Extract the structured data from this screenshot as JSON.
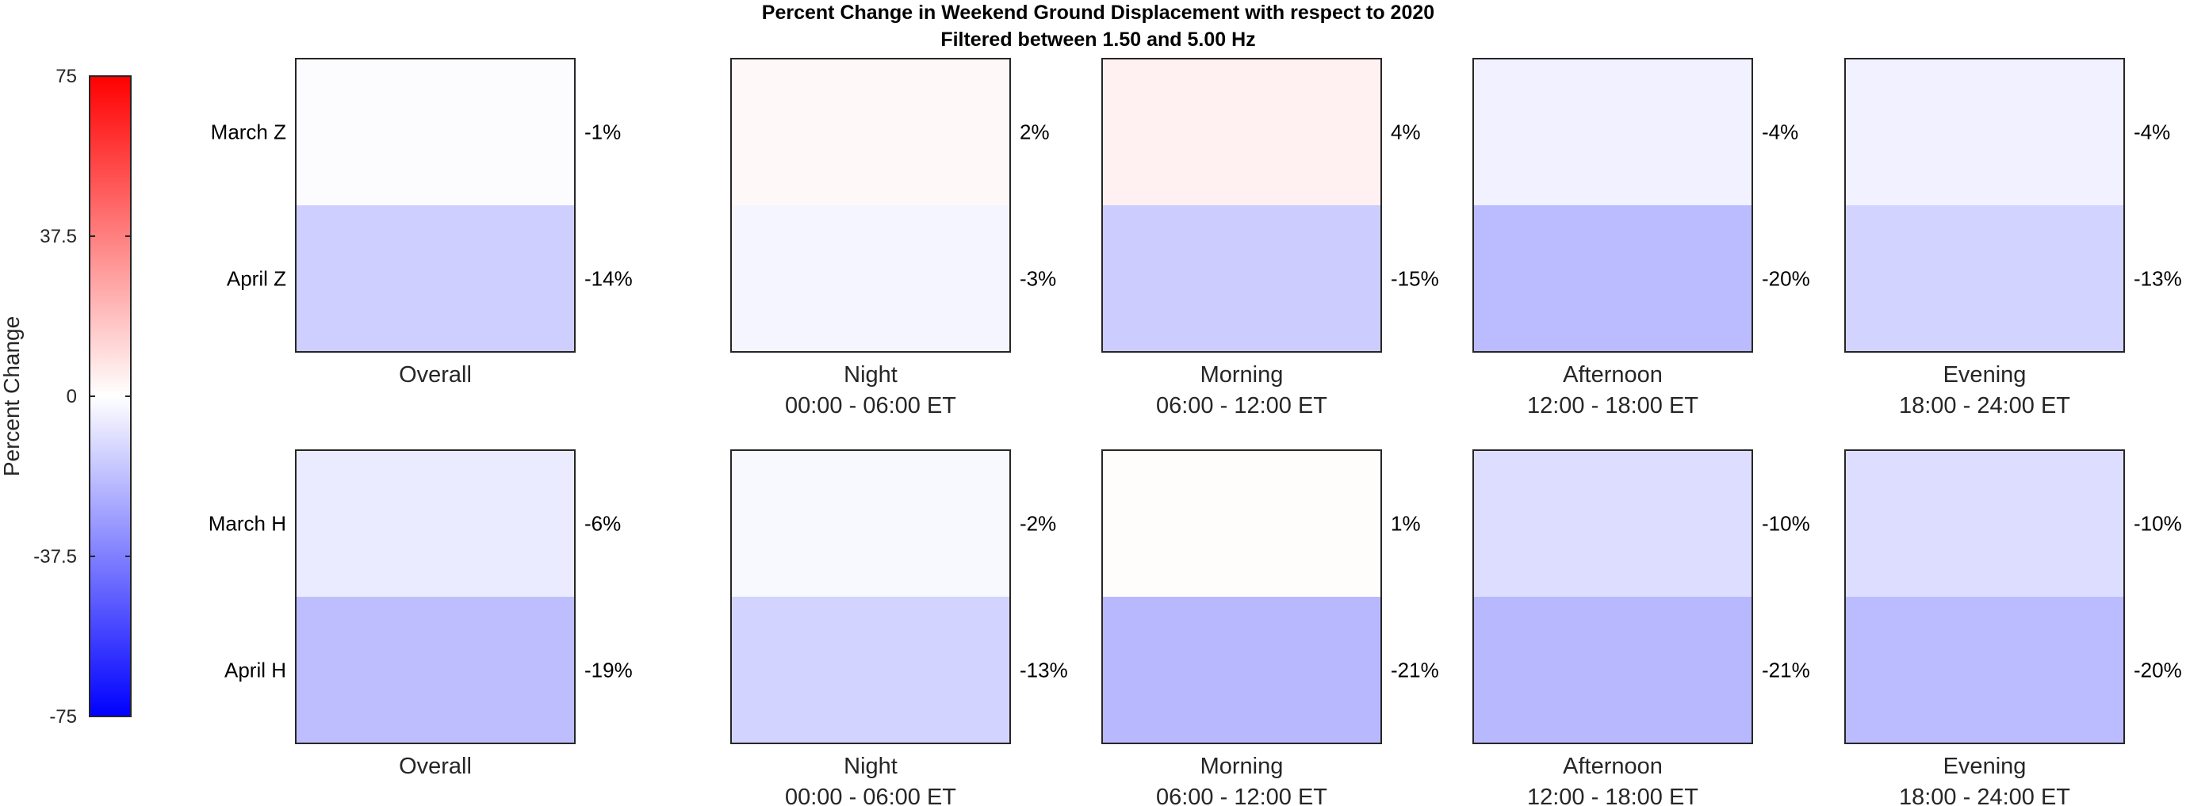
{
  "chart_data": {
    "type": "heatmap",
    "title": "Percent Change in Weekend Ground Displacement with respect to 2020",
    "subtitle": "Filtered between 1.50 and 5.00 Hz",
    "colorbar": {
      "label": "Percent Change",
      "range": [
        -75,
        75
      ],
      "ticks": [
        "75",
        "37.5",
        "0",
        "-37.5",
        "-75"
      ],
      "tick_values": [
        75,
        37.5,
        0,
        -37.5,
        -75
      ],
      "colormap": "blue-white-red",
      "low_color": "#0000ff",
      "mid_color": "#ffffff",
      "high_color": "#ff0000"
    },
    "columns": [
      {
        "name": "Overall",
        "sub": ""
      },
      {
        "name": "Night",
        "sub": "00:00 - 06:00 ET"
      },
      {
        "name": "Morning",
        "sub": "06:00 - 12:00 ET"
      },
      {
        "name": "Afternoon",
        "sub": "12:00 - 18:00 ET"
      },
      {
        "name": "Evening",
        "sub": "18:00 - 24:00 ET"
      }
    ],
    "panel_rows": [
      {
        "row_labels": [
          "March Z",
          "April Z"
        ],
        "values": [
          [
            -1,
            -14
          ],
          [
            2,
            -3
          ],
          [
            4,
            -15
          ],
          [
            -4,
            -20
          ],
          [
            -4,
            -13
          ]
        ],
        "labels": [
          [
            "-1%",
            "-14%"
          ],
          [
            "2%",
            "-3%"
          ],
          [
            "4%",
            "-15%"
          ],
          [
            "-4%",
            "-20%"
          ],
          [
            "-4%",
            "-13%"
          ]
        ]
      },
      {
        "row_labels": [
          "March H",
          "April H"
        ],
        "values": [
          [
            -6,
            -19
          ],
          [
            -2,
            -13
          ],
          [
            1,
            -21
          ],
          [
            -10,
            -21
          ],
          [
            -10,
            -20
          ]
        ],
        "labels": [
          [
            "-6%",
            "-19%"
          ],
          [
            "-2%",
            "-13%"
          ],
          [
            "1%",
            "-21%"
          ],
          [
            "-10%",
            "-21%"
          ],
          [
            "-10%",
            "-20%"
          ]
        ]
      }
    ]
  }
}
